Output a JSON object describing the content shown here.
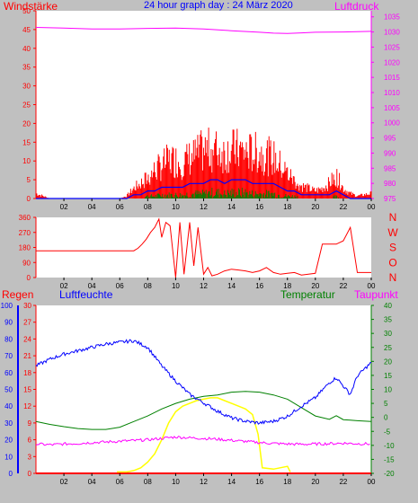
{
  "title": "24 hour graph day : 24 März 2020",
  "colors": {
    "background": "#c0c0c0",
    "plot": "#ffffff",
    "wind": "#ff0000",
    "gust": "#ff0000",
    "wind_avg": "#0000ff",
    "wind_green": "#008000",
    "pressure": "#ff00ff",
    "direction": "#ff0000",
    "rain": "#ff0000",
    "humidity": "#0000ff",
    "temperature": "#008000",
    "dewpoint": "#ff00ff",
    "solar": "#ffff00",
    "solar_light": "#ffffaa"
  },
  "x_ticks": [
    "02",
    "04",
    "06",
    "08",
    "10",
    "12",
    "14",
    "16",
    "18",
    "20",
    "22",
    "00"
  ],
  "chart_data": [
    {
      "type": "bar",
      "name": "wind-pressure",
      "left_label": "Windstärke",
      "right_label": "Luftdruck",
      "left_ticks": [
        "0",
        "5",
        "10",
        "15",
        "20",
        "25",
        "30",
        "35",
        "40",
        "45",
        "50"
      ],
      "right_ticks": [
        "975",
        "980",
        "985",
        "990",
        "995",
        "1000",
        "1005",
        "1010",
        "1015",
        "1020",
        "1025",
        "1030",
        "1035"
      ],
      "ylim_left": [
        0,
        50
      ],
      "ylim_right": [
        975,
        1037
      ],
      "x": [
        0,
        1,
        2,
        3,
        4,
        5,
        6,
        6.5,
        7,
        7.5,
        8,
        8.5,
        9,
        9.5,
        10,
        10.5,
        11,
        11.5,
        12,
        12.5,
        13,
        13.5,
        14,
        14.5,
        15,
        15.5,
        16,
        16.5,
        17,
        17.5,
        18,
        18.5,
        19,
        19.5,
        20,
        20.5,
        21,
        21.5,
        22,
        22.5,
        23,
        24
      ],
      "gust": [
        2,
        0,
        0,
        0,
        0,
        0,
        0,
        1,
        4,
        6,
        8,
        11,
        13,
        15,
        15,
        14,
        16,
        17,
        19,
        19,
        19,
        18,
        19,
        19,
        18,
        18,
        18,
        17,
        16,
        13,
        10,
        7,
        5,
        4,
        3,
        4,
        6,
        9,
        4,
        2,
        1,
        2
      ],
      "wind_avg": [
        0,
        0,
        0,
        0,
        0,
        0,
        0,
        0,
        1,
        1,
        2,
        2,
        3,
        3,
        3,
        3,
        4,
        4,
        4,
        5,
        5,
        4,
        5,
        5,
        5,
        4,
        4,
        4,
        4,
        3,
        2,
        2,
        1,
        1,
        1,
        1,
        1,
        2,
        1,
        0,
        0,
        0
      ],
      "pressure_x": [
        0,
        2,
        4,
        6,
        8,
        10,
        12,
        14,
        16,
        17,
        18,
        19,
        20,
        22,
        24
      ],
      "pressure": [
        1031.5,
        1031.3,
        1031,
        1031,
        1031.2,
        1031.3,
        1031,
        1030.4,
        1029.9,
        1029.6,
        1029.5,
        1029.7,
        1029.9,
        1030.0,
        1030.2
      ]
    },
    {
      "type": "line",
      "name": "wind-direction",
      "ticks": [
        "0",
        "90",
        "180",
        "270",
        "360"
      ],
      "ylim": [
        0,
        360
      ],
      "right_letters": [
        "N",
        "W",
        "S",
        "O",
        "N"
      ],
      "x": [
        0,
        1,
        2,
        3,
        4,
        5,
        6,
        7,
        7.3,
        7.6,
        7.9,
        8.2,
        8.5,
        8.8,
        9,
        9.3,
        9.6,
        10,
        10.3,
        10.6,
        11,
        11.3,
        11.6,
        12,
        12.3,
        12.6,
        13,
        13.5,
        14,
        14.5,
        15,
        15.5,
        16,
        16.5,
        17,
        17.5,
        18,
        18.5,
        19,
        19.5,
        20,
        20.5,
        21,
        21.5,
        22,
        22.5,
        23,
        24
      ],
      "values": [
        160,
        160,
        160,
        160,
        160,
        160,
        160,
        160,
        175,
        200,
        230,
        270,
        300,
        350,
        240,
        330,
        310,
        0,
        330,
        20,
        330,
        70,
        300,
        20,
        60,
        10,
        20,
        40,
        50,
        45,
        40,
        30,
        40,
        60,
        30,
        20,
        25,
        30,
        15,
        20,
        25,
        200,
        200,
        200,
        220,
        300,
        30,
        30
      ]
    },
    {
      "type": "line",
      "name": "rain-humidity-temperature",
      "labels": {
        "rain": "Regen",
        "humidity": "Luftfeuchte",
        "temperature": "Temperatur",
        "dewpoint": "Taupunkt"
      },
      "humidity_ticks": [
        "0",
        "10",
        "20",
        "30",
        "40",
        "50",
        "60",
        "70",
        "80",
        "90",
        "100"
      ],
      "rain_ticks": [
        "0",
        "3",
        "6",
        "9",
        "12",
        "15",
        "18",
        "21",
        "24",
        "27",
        "30"
      ],
      "temp_ticks": [
        "-20",
        "-15",
        "-10",
        "-5",
        "0",
        "5",
        "10",
        "15",
        "20",
        "25",
        "30",
        "35",
        "40"
      ],
      "ylim_humidity": [
        0,
        100
      ],
      "ylim_temperature": [
        -20,
        40
      ],
      "x": [
        0,
        1,
        2,
        3,
        4,
        5,
        6,
        7,
        8,
        9,
        10,
        11,
        12,
        13,
        14,
        15,
        16,
        17,
        18,
        19,
        20,
        21,
        21.5,
        22,
        22.5,
        23,
        24
      ],
      "humidity": [
        64,
        68,
        71,
        73,
        75,
        77,
        78,
        79,
        75,
        64,
        55,
        47,
        42,
        37,
        33,
        31,
        30,
        31,
        34,
        40,
        45,
        54,
        57,
        52,
        47,
        58,
        66
      ],
      "temperature": [
        -1.5,
        -2.5,
        -3.3,
        -4,
        -4.3,
        -4.3,
        -3.5,
        -1.5,
        0.5,
        3,
        5,
        6.5,
        7.5,
        8,
        9,
        9.3,
        9,
        8,
        6.5,
        3.5,
        0.5,
        -0.7,
        0.6,
        -0.8,
        -1,
        -1.2,
        -1.5
      ],
      "dewpoint": [
        -9.5,
        -9.8,
        -9.5,
        -9.3,
        -9,
        -8.8,
        -8.5,
        -8.3,
        -8,
        -7.5,
        -7,
        -7.3,
        -7.5,
        -7.8,
        -8.2,
        -8.6,
        -9,
        -9.3,
        -9.5,
        -9.6,
        -9.5,
        -9.4,
        -9.3,
        -9.2,
        -9.3,
        -9.4,
        -9.5
      ],
      "solar_x": [
        5.8,
        6.5,
        7,
        7.5,
        8,
        8.5,
        9,
        9.5,
        10,
        10.5,
        11,
        11.5,
        12,
        12.5,
        13,
        13.5,
        14,
        14.5,
        15,
        15.5,
        15.9,
        16.2,
        17,
        18,
        18.2
      ],
      "solar": [
        -19.5,
        -19.5,
        -19,
        -18,
        -16,
        -13,
        -8,
        -2,
        2,
        4,
        5,
        6,
        6.5,
        7,
        7,
        6,
        5,
        4,
        3,
        1,
        -6,
        -18,
        -18.5,
        -17.5,
        -19.5
      ],
      "rain": [
        0,
        0,
        0,
        0,
        0,
        0,
        0,
        0,
        0,
        0,
        0,
        0,
        0,
        0,
        0,
        0,
        0,
        0,
        0,
        0,
        0,
        0,
        0,
        0,
        0,
        0,
        0
      ]
    }
  ]
}
